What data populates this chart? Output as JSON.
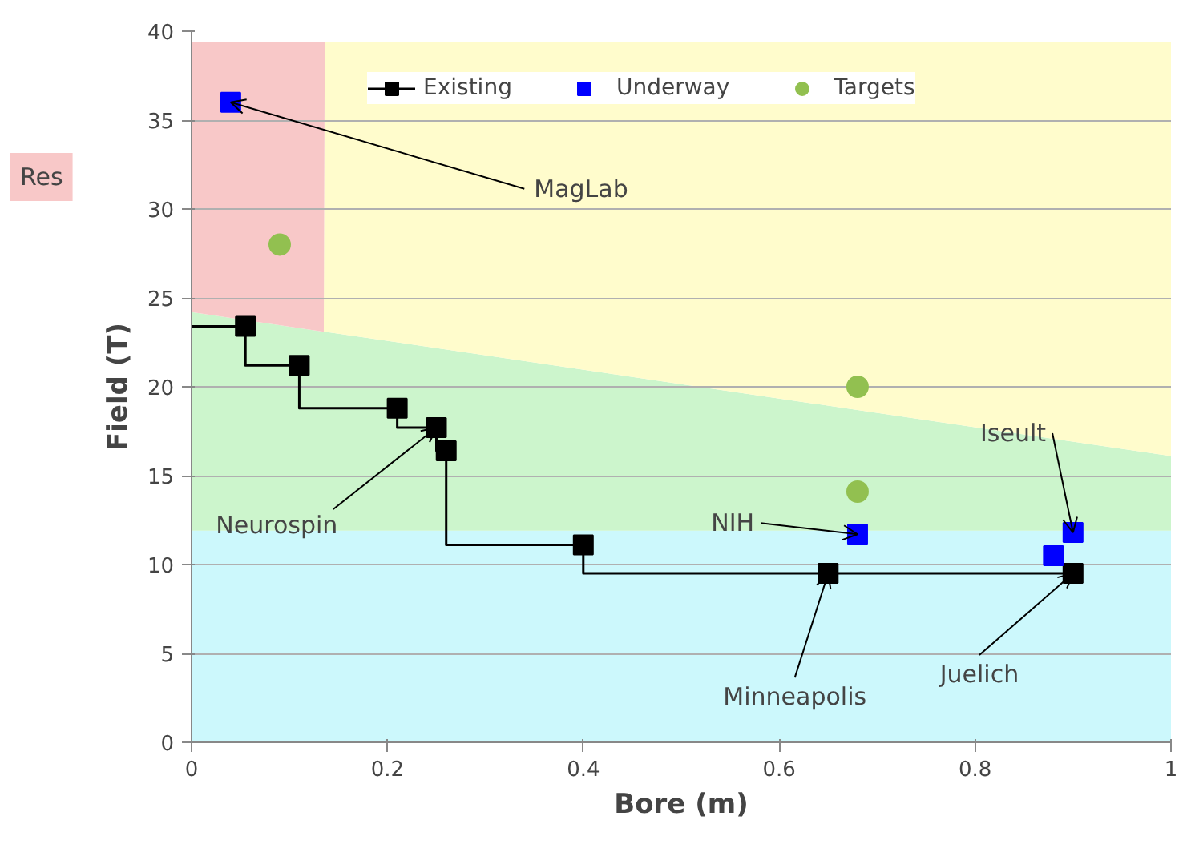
{
  "chart_data": {
    "type": "area",
    "stacked": true,
    "xlabel": "Bore (m)",
    "ylabel": "Field (T)",
    "xlim": [
      0,
      1
    ],
    "ylim": [
      0,
      40
    ],
    "xticks": [
      0,
      0.2,
      0.4,
      0.6,
      0.8,
      1
    ],
    "yticks": [
      0,
      5,
      10,
      15,
      20,
      25,
      30,
      35,
      40
    ],
    "grid": "y",
    "legend": "top",
    "series": [
      {
        "color": "#ccf8fc",
        "x": [
          0,
          0.135,
          0.136,
          1
        ],
        "values": [
          11.9,
          11.9,
          11.9,
          11.9
        ]
      },
      {
        "color": "#ccf5cc",
        "x": [
          0,
          0.135,
          0.136,
          1
        ],
        "values": [
          12.3,
          11.2,
          11.2,
          4.2
        ]
      },
      {
        "color": "#fffccc",
        "x": [
          0,
          0.135,
          0.136,
          1
        ],
        "values": [
          0,
          0,
          16.3,
          23.3
        ]
      },
      {
        "name": "Res",
        "color": "#f8c8c8",
        "x": [
          0,
          0.135,
          0.136,
          1
        ],
        "values": [
          15.2,
          16.3,
          0,
          0
        ]
      },
      {
        "type": "step",
        "color": "#000000",
        "marker": "none",
        "x": [
          0,
          0.055,
          0.11,
          0.21,
          0.25,
          0.26,
          0.4,
          0.65,
          0.9
        ],
        "values": [
          23.4,
          23.4,
          21.2,
          18.8,
          17.7,
          16.4,
          11.1,
          9.5,
          9.5
        ]
      },
      {
        "type": "scatter",
        "name": "Existing",
        "color": "#000000",
        "marker": "square",
        "x": [
          0.055,
          0.11,
          0.21,
          0.25,
          0.26,
          0.4,
          0.65,
          0.9
        ],
        "values": [
          23.4,
          21.2,
          18.8,
          17.7,
          16.4,
          11.1,
          9.5,
          9.5
        ]
      },
      {
        "type": "scatter",
        "name": "Underway",
        "color": "#0000ff",
        "marker": "square",
        "x": [
          0.04,
          0.68,
          0.88,
          0.9
        ],
        "values": [
          36.0,
          11.7,
          10.5,
          11.8
        ]
      },
      {
        "type": "scatter",
        "name": "Targets",
        "color": "#92c050",
        "marker": "circle",
        "x": [
          0.09,
          0.68,
          0.68
        ],
        "values": [
          28.0,
          20.0,
          14.1
        ]
      }
    ],
    "annotations": [
      {
        "text": "MagLab",
        "x": 0.04,
        "y": 36.0
      },
      {
        "text": "Neurospin",
        "x": 0.25,
        "y": 17.7
      },
      {
        "text": "NIH",
        "x": 0.68,
        "y": 11.7
      },
      {
        "text": "Iseult",
        "x": 0.9,
        "y": 11.8
      },
      {
        "text": "Minneapolis",
        "x": 0.65,
        "y": 9.5
      },
      {
        "text": "Juelich",
        "x": 0.9,
        "y": 9.5
      }
    ]
  }
}
